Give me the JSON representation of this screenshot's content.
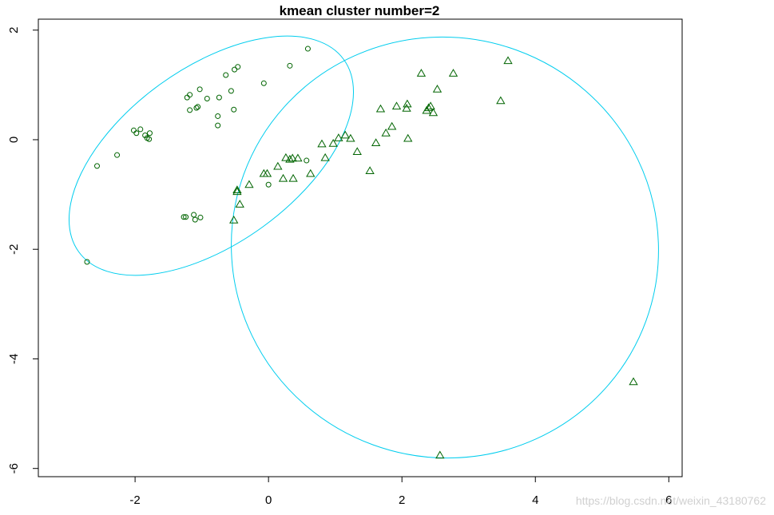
{
  "watermark": "https://blog.csdn.net/weixin_43180762",
  "chart_data": {
    "type": "scatter",
    "title": "kmean cluster number=2",
    "xlabel": "",
    "ylabel": "",
    "xlim": [
      -3.45,
      6.2
    ],
    "ylim": [
      -6.15,
      2.2
    ],
    "xticks": [
      -2,
      0,
      2,
      4,
      6
    ],
    "yticks": [
      -6,
      -4,
      -2,
      0,
      2
    ],
    "xtick_labels": [
      "-2",
      "0",
      "2",
      "4",
      "6"
    ],
    "ytick_labels": [
      "-6",
      "-4",
      "-2",
      "0",
      "2"
    ],
    "grid": false,
    "legend": "none",
    "colors": {
      "points": "#006400",
      "ellipse": "#00CDEE",
      "axes": "#000000"
    },
    "series": [
      {
        "marker": "circle",
        "points": [
          [
            -2.72,
            -2.23
          ],
          [
            -2.57,
            -0.48
          ],
          [
            -2.27,
            -0.28
          ],
          [
            -2.02,
            0.17
          ],
          [
            -1.98,
            0.12
          ],
          [
            -1.92,
            0.19
          ],
          [
            -1.85,
            0.08
          ],
          [
            -1.82,
            0.03
          ],
          [
            -1.79,
            0.01
          ],
          [
            -1.78,
            0.12
          ],
          [
            -1.27,
            -1.41
          ],
          [
            -1.24,
            -1.41
          ],
          [
            -1.22,
            0.77
          ],
          [
            -1.18,
            0.82
          ],
          [
            -1.18,
            0.54
          ],
          [
            -1.12,
            -1.37
          ],
          [
            -1.1,
            -1.46
          ],
          [
            -1.08,
            0.58
          ],
          [
            -1.06,
            0.6
          ],
          [
            -1.03,
            0.92
          ],
          [
            -1.02,
            -1.42
          ],
          [
            -0.92,
            0.75
          ],
          [
            -0.76,
            0.43
          ],
          [
            -0.76,
            0.26
          ],
          [
            -0.74,
            0.77
          ],
          [
            -0.64,
            1.18
          ],
          [
            -0.56,
            0.89
          ],
          [
            -0.52,
            0.55
          ],
          [
            -0.51,
            1.28
          ],
          [
            -0.46,
            1.33
          ],
          [
            -0.07,
            1.03
          ],
          [
            0.32,
            1.35
          ],
          [
            0.59,
            1.66
          ],
          [
            0.57,
            -0.38
          ],
          [
            0.0,
            -0.82
          ]
        ]
      },
      {
        "marker": "triangle",
        "points": [
          [
            -0.52,
            -1.47
          ],
          [
            -0.47,
            -0.92
          ],
          [
            -0.47,
            -0.95
          ],
          [
            -0.43,
            -1.18
          ],
          [
            -0.29,
            -0.82
          ],
          [
            -0.07,
            -0.62
          ],
          [
            -0.02,
            -0.62
          ],
          [
            0.14,
            -0.49
          ],
          [
            0.22,
            -0.71
          ],
          [
            0.26,
            -0.33
          ],
          [
            0.32,
            -0.36
          ],
          [
            0.36,
            -0.34
          ],
          [
            0.37,
            -0.71
          ],
          [
            0.44,
            -0.34
          ],
          [
            0.63,
            -0.62
          ],
          [
            0.8,
            -0.08
          ],
          [
            0.85,
            -0.33
          ],
          [
            0.97,
            -0.07
          ],
          [
            1.05,
            0.03
          ],
          [
            1.15,
            0.08
          ],
          [
            1.23,
            0.02
          ],
          [
            1.33,
            -0.22
          ],
          [
            1.52,
            -0.57
          ],
          [
            1.61,
            -0.06
          ],
          [
            1.68,
            0.56
          ],
          [
            1.76,
            0.12
          ],
          [
            1.85,
            0.24
          ],
          [
            1.92,
            0.61
          ],
          [
            2.07,
            0.57
          ],
          [
            2.08,
            0.65
          ],
          [
            2.09,
            0.02
          ],
          [
            2.29,
            1.21
          ],
          [
            2.37,
            0.53
          ],
          [
            2.4,
            0.58
          ],
          [
            2.43,
            0.61
          ],
          [
            2.47,
            0.49
          ],
          [
            2.53,
            0.92
          ],
          [
            2.77,
            1.21
          ],
          [
            3.48,
            0.71
          ],
          [
            3.59,
            1.44
          ],
          [
            2.57,
            -5.76
          ],
          [
            5.47,
            -4.42
          ]
        ]
      }
    ]
  }
}
